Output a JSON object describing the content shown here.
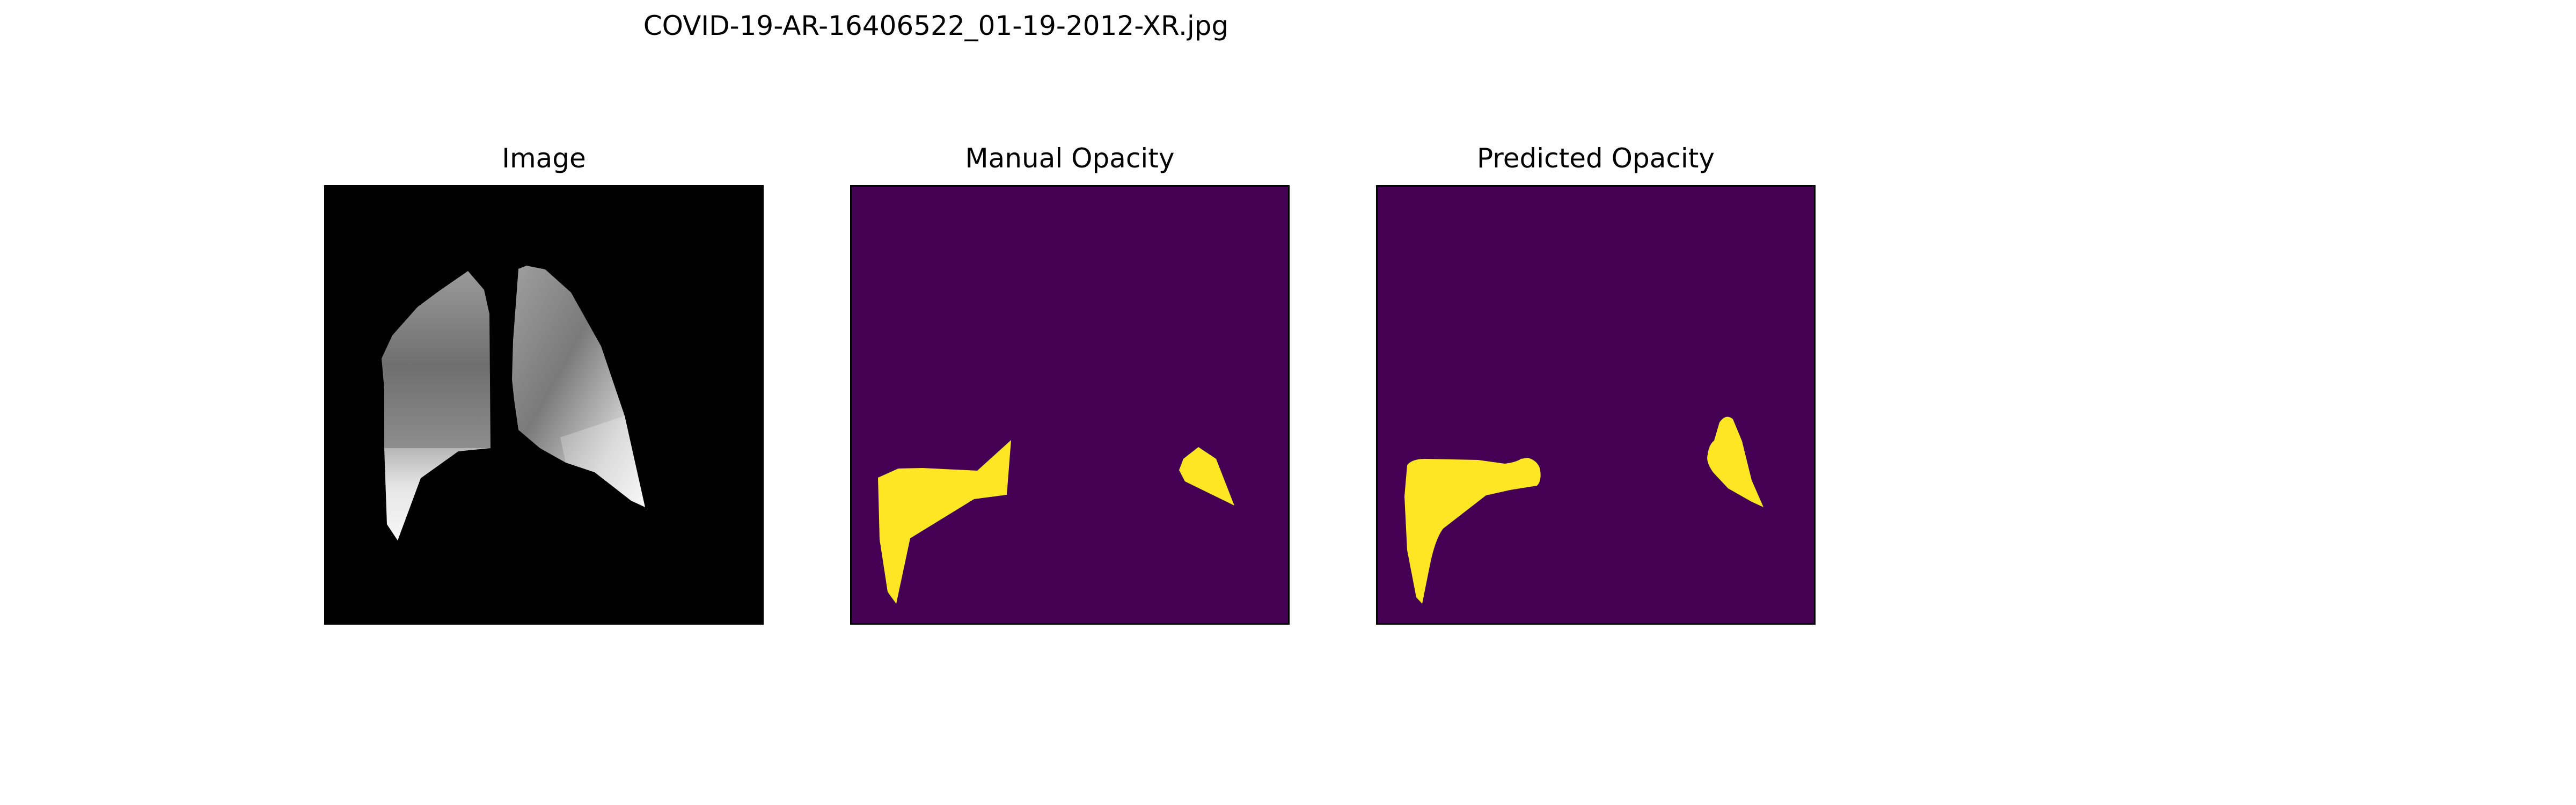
{
  "figure": {
    "title": "COVID-19-AR-16406522_01-19-2012-XR.jpg"
  },
  "panels": [
    {
      "title": "Image"
    },
    {
      "title": "Manual Opacity"
    },
    {
      "title": "Predicted Opacity"
    }
  ],
  "colors": {
    "mask_background": "#440154",
    "mask_foreground": "#fde725",
    "image_background": "#000000"
  }
}
